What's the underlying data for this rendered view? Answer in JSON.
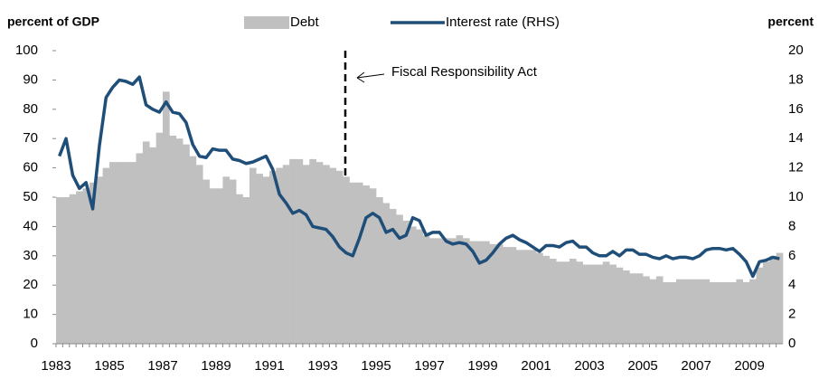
{
  "chart_data": {
    "type": "bar",
    "y_label": "percent of GDP",
    "y2_label": "percent",
    "annotation": "Fiscal Responsibility  Act",
    "categories": [
      "1983",
      null,
      null,
      null,
      null,
      null,
      null,
      null,
      "1985",
      null,
      null,
      null,
      null,
      null,
      null,
      null,
      "1987",
      null,
      null,
      null,
      null,
      null,
      null,
      null,
      "1989",
      null,
      null,
      null,
      null,
      null,
      null,
      null,
      "1991",
      null,
      null,
      null,
      null,
      null,
      null,
      null,
      "1993",
      null,
      null,
      null,
      null,
      null,
      null,
      null,
      "1995",
      null,
      null,
      null,
      null,
      null,
      null,
      null,
      "1997",
      null,
      null,
      null,
      null,
      null,
      null,
      null,
      "1999",
      null,
      null,
      null,
      null,
      null,
      null,
      null,
      "2001",
      null,
      null,
      null,
      null,
      null,
      null,
      null,
      "2003",
      null,
      null,
      null,
      null,
      null,
      null,
      null,
      "2005",
      null,
      null,
      null,
      null,
      null,
      null,
      null,
      "2007",
      null,
      null,
      null,
      null,
      null,
      null,
      null,
      "2009",
      null,
      null,
      null,
      null
    ],
    "series": [
      {
        "name": "Debt",
        "type": "bar",
        "color": "#c0c0c0",
        "values": [
          50,
          50,
          51,
          52,
          53,
          55,
          57,
          60,
          62,
          62,
          62,
          62,
          65,
          69,
          67,
          72,
          86,
          71,
          70,
          68,
          64,
          61,
          56,
          53,
          53,
          57,
          56,
          51,
          50,
          60,
          58,
          57,
          59,
          60,
          61,
          63,
          63,
          61,
          63,
          62,
          61,
          60,
          59,
          57,
          55,
          55,
          54,
          53,
          50,
          48,
          46,
          44,
          42,
          40,
          39,
          37,
          36,
          36,
          36,
          36,
          37,
          36,
          35,
          35,
          35,
          34,
          34,
          33,
          33,
          32,
          32,
          32,
          31,
          30,
          29,
          28,
          28,
          29,
          28,
          27,
          27,
          27,
          28,
          27,
          26,
          25,
          24,
          24,
          23,
          22,
          23,
          21,
          21,
          22,
          22,
          22,
          22,
          22,
          21,
          21,
          21,
          21,
          22,
          21,
          22,
          26,
          28,
          30,
          31
        ]
      },
      {
        "name": "Interest rate (RHS)",
        "type": "line",
        "axis": "y2",
        "color": "#1f4e79",
        "values": [
          12.8,
          14,
          11.5,
          10.6,
          11,
          9.2,
          13.5,
          16.8,
          17.5,
          18,
          17.9,
          17.7,
          18.2,
          16.3,
          16,
          15.8,
          16.5,
          15.8,
          15.7,
          15.1,
          13.6,
          12.8,
          12.7,
          13.3,
          13.2,
          13.2,
          12.6,
          12.5,
          12.3,
          12.4,
          12.6,
          12.8,
          11.9,
          10.2,
          9.6,
          8.9,
          9.1,
          8.8,
          8,
          7.9,
          7.8,
          7.3,
          6.6,
          6.2,
          6,
          7.2,
          8.6,
          8.9,
          8.6,
          7.6,
          7.8,
          7.2,
          7.4,
          8.6,
          8.4,
          7.4,
          7.6,
          7.6,
          7,
          6.8,
          6.9,
          6.8,
          6.3,
          5.5,
          5.7,
          6.2,
          6.8,
          7.2,
          7.4,
          7.1,
          6.9,
          6.6,
          6.3,
          6.7,
          6.7,
          6.6,
          6.9,
          7,
          6.6,
          6.6,
          6.2,
          6,
          6,
          6.3,
          6,
          6.4,
          6.4,
          6.1,
          6.1,
          5.9,
          5.8,
          6,
          5.8,
          5.9,
          5.9,
          5.8,
          6,
          6.4,
          6.5,
          6.5,
          6.4,
          6.5,
          6.1,
          5.6,
          4.6,
          5.6,
          5.7,
          5.9,
          5.8
        ]
      }
    ],
    "ylim": [
      0,
      100
    ],
    "yticks": [
      0,
      10,
      20,
      30,
      40,
      50,
      60,
      70,
      80,
      90,
      100
    ],
    "y2lim": [
      0,
      20
    ],
    "y2ticks": [
      0,
      2,
      4,
      6,
      8,
      10,
      12,
      14,
      16,
      18,
      20
    ],
    "legend": "top",
    "grid": false
  }
}
